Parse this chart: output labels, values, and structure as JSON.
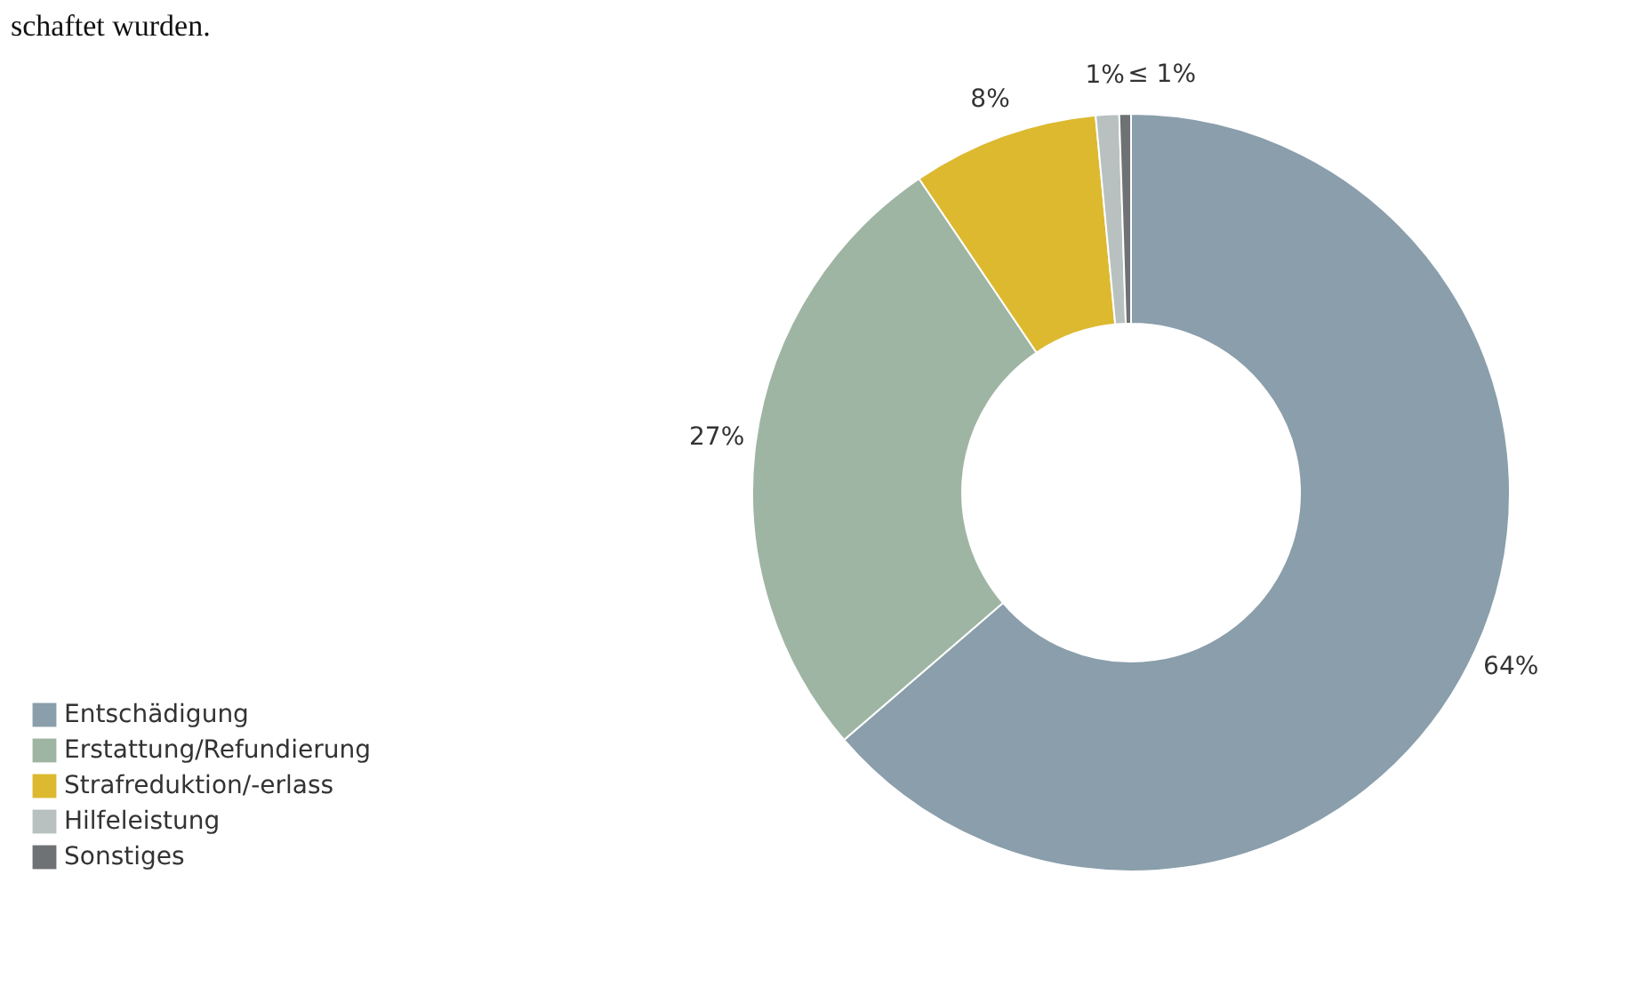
{
  "chart_data": {
    "type": "donut",
    "annotations": [
      "schaftet wurden."
    ],
    "categories": [
      "Entschädigung",
      "Erstattung/Refundierung",
      "Strafreduktion/-erlass",
      "Hilfeleistung",
      "Sonstiges"
    ],
    "values": [
      64,
      27,
      8,
      1,
      0.5
    ],
    "colors": [
      "#8a9eab",
      "#9fb5a3",
      "#dcb92f",
      "#b8c0c0",
      "#6f7274"
    ],
    "value_labels": [
      "64%",
      "27%",
      "8%",
      "1%",
      "≤ 1%"
    ],
    "legend": "bottom left"
  }
}
